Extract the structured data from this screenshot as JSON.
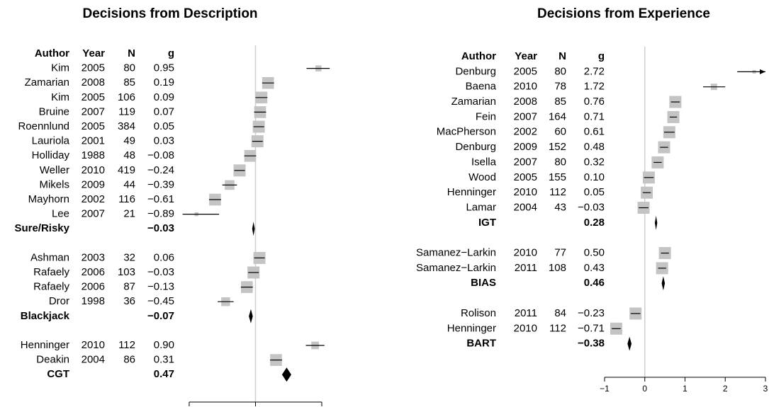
{
  "chart_data": [
    {
      "type": "forest",
      "title": "Decisions from Description",
      "columns": [
        "Author",
        "Year",
        "N",
        "g"
      ],
      "xlim": [
        -1.1,
        1.15
      ],
      "xticks": [
        {
          "value": -1,
          "label": "−1"
        },
        0,
        1
      ],
      "groups": [
        {
          "studies": [
            {
              "author": "Kim",
              "year": 2005,
              "n": 80,
              "g": 0.95,
              "g_label": "0.95",
              "lower": 0.77,
              "upper": 1.12
            },
            {
              "author": "Zamarian",
              "year": 2008,
              "n": 85,
              "g": 0.19,
              "g_label": "0.19",
              "lower": 0.1,
              "upper": 0.28
            },
            {
              "author": "Kim",
              "year": 2005,
              "n": 106,
              "g": 0.09,
              "g_label": "0.09",
              "lower": 0.0,
              "upper": 0.18
            },
            {
              "author": "Bruine",
              "year": 2007,
              "n": 119,
              "g": 0.07,
              "g_label": "0.07",
              "lower": -0.02,
              "upper": 0.16
            },
            {
              "author": "Roennlund",
              "year": 2005,
              "n": 384,
              "g": 0.05,
              "g_label": "0.05",
              "lower": -0.03,
              "upper": 0.13
            },
            {
              "author": "Lauriola",
              "year": 2001,
              "n": 49,
              "g": 0.03,
              "g_label": "0.03",
              "lower": -0.05,
              "upper": 0.11
            },
            {
              "author": "Holliday",
              "year": 1988,
              "n": 48,
              "g": -0.08,
              "g_label": "−0.08",
              "lower": -0.17,
              "upper": 0.01
            },
            {
              "author": "Weller",
              "year": 2010,
              "n": 419,
              "g": -0.24,
              "g_label": "−0.24",
              "lower": -0.32,
              "upper": -0.16
            },
            {
              "author": "Mikels",
              "year": 2009,
              "n": 44,
              "g": -0.39,
              "g_label": "−0.39",
              "lower": -0.5,
              "upper": -0.28
            },
            {
              "author": "Mayhorn",
              "year": 2002,
              "n": 116,
              "g": -0.61,
              "g_label": "−0.61",
              "lower": -0.7,
              "upper": -0.52
            },
            {
              "author": "Lee",
              "year": 2007,
              "n": 21,
              "g": -0.89,
              "g_label": "−0.89",
              "lower": -1.1,
              "upper": -0.55
            }
          ],
          "summary": {
            "label": "Sure/Risky",
            "g": -0.03,
            "g_label": "−0.03",
            "lower": -0.05,
            "upper": -0.01
          }
        },
        {
          "studies": [
            {
              "author": "Ashman",
              "year": 2003,
              "n": 32,
              "g": 0.06,
              "g_label": "0.06",
              "lower": -0.02,
              "upper": 0.14
            },
            {
              "author": "Rafaely",
              "year": 2006,
              "n": 103,
              "g": -0.03,
              "g_label": "−0.03",
              "lower": -0.11,
              "upper": 0.05
            },
            {
              "author": "Rafaely",
              "year": 2006,
              "n": 87,
              "g": -0.13,
              "g_label": "−0.13",
              "lower": -0.22,
              "upper": -0.04
            },
            {
              "author": "Dror",
              "year": 1998,
              "n": 36,
              "g": -0.45,
              "g_label": "−0.45",
              "lower": -0.57,
              "upper": -0.33
            }
          ],
          "summary": {
            "label": "Blackjack",
            "g": -0.07,
            "g_label": "−0.07",
            "lower": -0.1,
            "upper": -0.04
          }
        },
        {
          "studies": [
            {
              "author": "Henninger",
              "year": 2010,
              "n": 112,
              "g": 0.9,
              "g_label": "0.90",
              "lower": 0.76,
              "upper": 1.04
            },
            {
              "author": "Deakin",
              "year": 2004,
              "n": 86,
              "g": 0.31,
              "g_label": "0.31",
              "lower": 0.22,
              "upper": 0.4
            }
          ],
          "summary": {
            "label": "CGT",
            "g": 0.47,
            "g_label": "0.47",
            "lower": 0.4,
            "upper": 0.54
          }
        }
      ]
    },
    {
      "type": "forest",
      "title": "Decisions from Experience",
      "columns": [
        "Author",
        "Year",
        "N",
        "g"
      ],
      "xlim": [
        -1,
        3
      ],
      "xticks": [
        {
          "value": -1,
          "label": "−1"
        },
        0,
        1,
        2,
        3
      ],
      "groups": [
        {
          "studies": [
            {
              "author": "Denburg",
              "year": 2005,
              "n": 80,
              "g": 2.72,
              "g_label": "2.72",
              "lower": 2.3,
              "upper": 3.3
            },
            {
              "author": "Baena",
              "year": 2010,
              "n": 78,
              "g": 1.72,
              "g_label": "1.72",
              "lower": 1.45,
              "upper": 2.0
            },
            {
              "author": "Zamarian",
              "year": 2008,
              "n": 85,
              "g": 0.76,
              "g_label": "0.76",
              "lower": 0.65,
              "upper": 0.87
            },
            {
              "author": "Fein",
              "year": 2007,
              "n": 164,
              "g": 0.71,
              "g_label": "0.71",
              "lower": 0.62,
              "upper": 0.8
            },
            {
              "author": "MacPherson",
              "year": 2002,
              "n": 60,
              "g": 0.61,
              "g_label": "0.61",
              "lower": 0.48,
              "upper": 0.74
            },
            {
              "author": "Denburg",
              "year": 2009,
              "n": 152,
              "g": 0.48,
              "g_label": "0.48",
              "lower": 0.38,
              "upper": 0.58
            },
            {
              "author": "Isella",
              "year": 2007,
              "n": 80,
              "g": 0.32,
              "g_label": "0.32",
              "lower": 0.22,
              "upper": 0.42
            },
            {
              "author": "Wood",
              "year": 2005,
              "n": 155,
              "g": 0.1,
              "g_label": "0.10",
              "lower": -0.02,
              "upper": 0.22
            },
            {
              "author": "Henninger",
              "year": 2010,
              "n": 112,
              "g": 0.05,
              "g_label": "0.05",
              "lower": -0.05,
              "upper": 0.15
            },
            {
              "author": "Lamar",
              "year": 2004,
              "n": 43,
              "g": -0.03,
              "g_label": "−0.03",
              "lower": -0.15,
              "upper": 0.09
            }
          ],
          "summary": {
            "label": "IGT",
            "g": 0.28,
            "g_label": "0.28",
            "lower": 0.25,
            "upper": 0.31
          }
        },
        {
          "studies": [
            {
              "author": "Samanez−Larkin",
              "year": 2010,
              "n": 77,
              "g": 0.5,
              "g_label": "0.50",
              "lower": 0.4,
              "upper": 0.6
            },
            {
              "author": "Samanez−Larkin",
              "year": 2011,
              "n": 108,
              "g": 0.43,
              "g_label": "0.43",
              "lower": 0.33,
              "upper": 0.53
            }
          ],
          "summary": {
            "label": "BIAS",
            "g": 0.46,
            "g_label": "0.46",
            "lower": 0.42,
            "upper": 0.5
          }
        },
        {
          "studies": [
            {
              "author": "Rolison",
              "year": 2011,
              "n": 84,
              "g": -0.23,
              "g_label": "−0.23",
              "lower": -0.35,
              "upper": -0.11
            },
            {
              "author": "Henninger",
              "year": 2010,
              "n": 112,
              "g": -0.71,
              "g_label": "−0.71",
              "lower": -0.82,
              "upper": -0.6
            }
          ],
          "summary": {
            "label": "BART",
            "g": -0.38,
            "g_label": "−0.38",
            "lower": -0.43,
            "upper": -0.33
          }
        }
      ]
    }
  ]
}
